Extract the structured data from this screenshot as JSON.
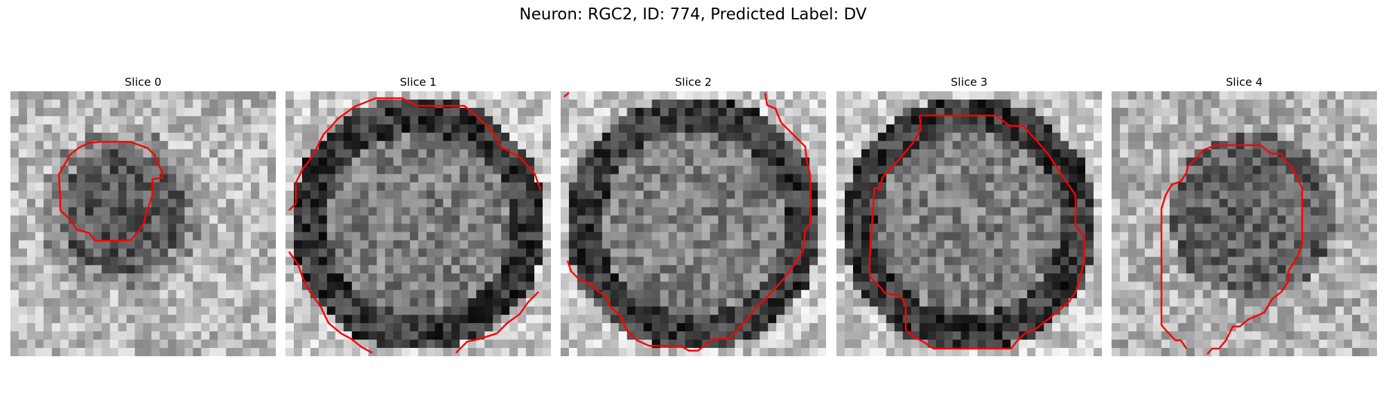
{
  "figure": {
    "suptitle": "Neuron: RGC2, ID: 774, Predicted Label: DV",
    "contour_color": "#ff0000",
    "slices": [
      {
        "title": "Slice 0",
        "dark_shape": "small-cell"
      },
      {
        "title": "Slice 1",
        "dark_shape": "ring"
      },
      {
        "title": "Slice 2",
        "dark_shape": "ring"
      },
      {
        "title": "Slice 3",
        "dark_shape": "ring"
      },
      {
        "title": "Slice 4",
        "dark_shape": "blob"
      }
    ]
  }
}
